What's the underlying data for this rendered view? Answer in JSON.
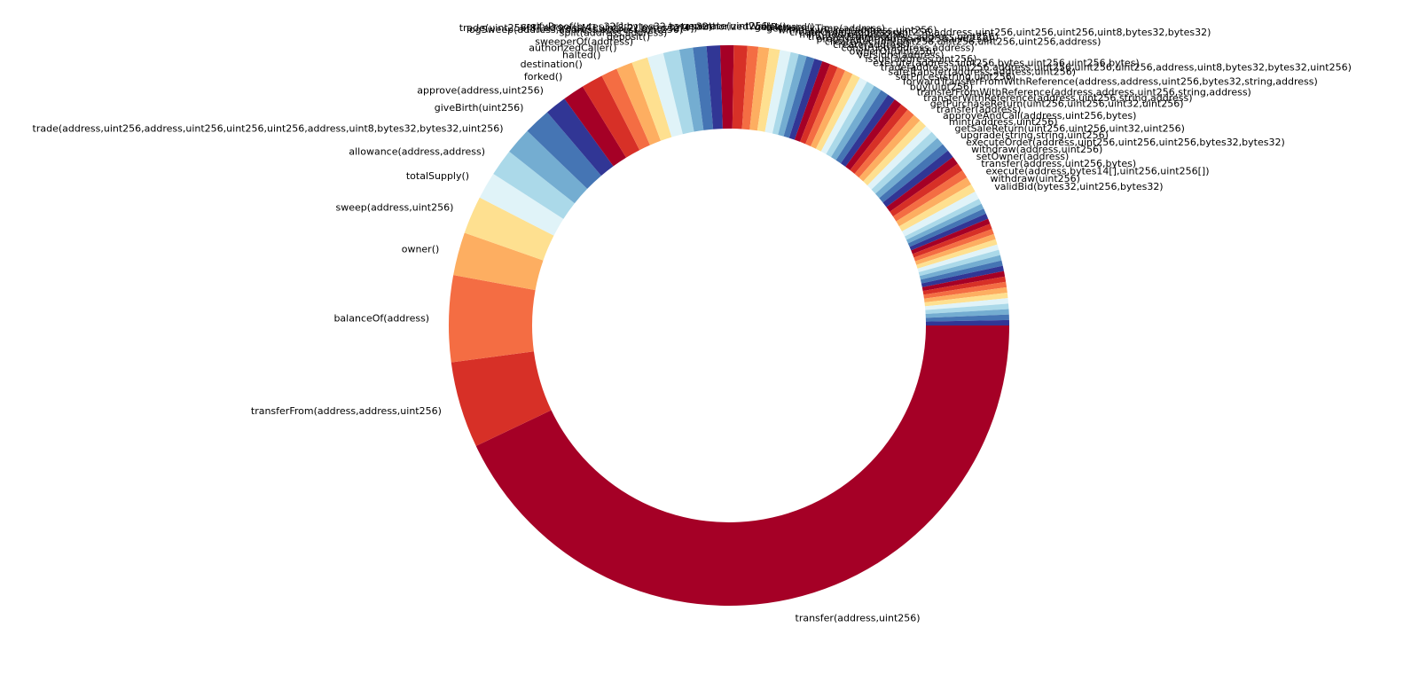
{
  "chart_data": {
    "type": "pie",
    "style": "donut",
    "start_angle_deg": 0,
    "direction": "clockwise",
    "colormap": [
      "#a50026",
      "#d73027",
      "#f46d43",
      "#fdae61",
      "#fee090",
      "#e0f3f8",
      "#abd9e9",
      "#74add1",
      "#4575b4",
      "#313695"
    ],
    "labeled_slices": [
      {
        "label": "transfer(address,uint256)",
        "value": 138
      },
      {
        "label": "transferFrom(address,address,uint256)",
        "value": 16
      },
      {
        "label": "balanceOf(address)",
        "value": 16
      },
      {
        "label": "owner()",
        "value": 8
      },
      {
        "label": "sweep(address,uint256)",
        "value": 7
      },
      {
        "label": "totalSupply()",
        "value": 5
      },
      {
        "label": "allowance(address,address)",
        "value": 5
      },
      {
        "label": "trade(address,uint256,address,uint256,uint256,uint256,address,uint8,bytes32,bytes32,uint256)",
        "value": 5
      },
      {
        "label": "giveBirth(uint256)",
        "value": 5
      },
      {
        "label": "approve(address,uint256)",
        "value": 4
      },
      {
        "label": "forked()",
        "value": 4
      },
      {
        "label": "destination()",
        "value": 4
      },
      {
        "label": "halted()",
        "value": 3
      },
      {
        "label": "authorizedCaller()",
        "value": 3
      },
      {
        "label": "sweeperOf(address)",
        "value": 3
      },
      {
        "label": "deposit()",
        "value": 3
      },
      {
        "label": "split(address,address)",
        "value": 3
      },
      {
        "label": "logSweep(address,address,address,uint256)",
        "value": 2.5
      },
      {
        "label": "trade(uint256[8],address[4],uint8[2],bytes32[4])",
        "value": 2.5
      },
      {
        "label": "verifyProof(bytes32[],bytes32,bytes32)",
        "value": 2.5
      },
      {
        "label": "generate(uint256)",
        "value": 2.5
      },
      {
        "label": "authorizedWallet()",
        "value": 2.5
      },
      {
        "label": "getReward()",
        "value": 2
      },
      {
        "label": "getUnlockTime(address)",
        "value": 2
      },
      {
        "label": "withdrawToken(address,uint256)",
        "value": 2
      },
      {
        "label": "createOrder(address,uint256,address,uint256,uint256,uint256,uint8,bytes32,bytes32)",
        "value": 2
      },
      {
        "label": "mint(address,uint256)",
        "value": 1.5
      },
      {
        "label": "transferFrom(address,address,uint256)",
        "value": 1.5
      },
      {
        "label": "proposedWithAuto(uint256,uint256)",
        "value": 1.5
      },
      {
        "label": "createAuction(uint256,uint256,uint256,uint256,address)",
        "value": 1.5
      },
      {
        "label": "create(address)",
        "value": 1.5
      },
      {
        "label": "construct(address,address)",
        "value": 1.5
      },
      {
        "label": "ownerOf(uint256)",
        "value": 1.5
      },
      {
        "label": "versions(address)",
        "value": 1.5
      },
      {
        "label": "issue(address,uint256)",
        "value": 1.5
      },
      {
        "label": "execute(address,uint256,bytes,uint256,uint256,bytes)",
        "value": 1.5
      },
      {
        "label": "trade(address,uint256,address,uint256,uint256,uint256,address,uint8,bytes32,bytes32,uint256)",
        "value": 1.5
      },
      {
        "label": "safeTransfer(address,address,uint256)",
        "value": 1.5
      },
      {
        "label": "setPrices(string,uint256)",
        "value": 1.5
      },
      {
        "label": "forwardTransferFromWithReference(address,address,uint256,bytes32,string,address)",
        "value": 1.5
      },
      {
        "label": "buy(uint256)",
        "value": 1.5
      },
      {
        "label": "transferFromWithReference(address,address,uint256,string,address)",
        "value": 1.5
      },
      {
        "label": "transferWithReference(address,uint256,string,address)",
        "value": 1.5
      },
      {
        "label": "getPurchaseReturn(uint256,uint256,uint32,uint256)",
        "value": 1.5
      },
      {
        "label": "transfer(address)",
        "value": 1.5
      },
      {
        "label": "approveAndCall(address,uint256,bytes)",
        "value": 1.5
      },
      {
        "label": "mint(address,uint256)",
        "value": 1.5
      },
      {
        "label": "getSaleReturn(uint256,uint256,uint32,uint256)",
        "value": 1.5
      },
      {
        "label": "upgrade(string,string,uint256)",
        "value": 1.5
      },
      {
        "label": "executeOrder(address,uint256,uint256,uint256,bytes32,bytes32)",
        "value": 1.5
      },
      {
        "label": "withdraw(address,uint256)",
        "value": 1.5
      },
      {
        "label": "setOwner(address)",
        "value": 1.5
      },
      {
        "label": "transfer(address,uint256,bytes)",
        "value": 1.5
      },
      {
        "label": "execute(address,bytes14[],uint256,uint256[])",
        "value": 1.5
      },
      {
        "label": "withdraw(uint256)",
        "value": 1.5
      },
      {
        "label": "validBid(bytes32,uint256,bytes32)",
        "value": 1.5
      }
    ],
    "unlabeled_slices": {
      "count": 24,
      "value_each": 1
    }
  }
}
